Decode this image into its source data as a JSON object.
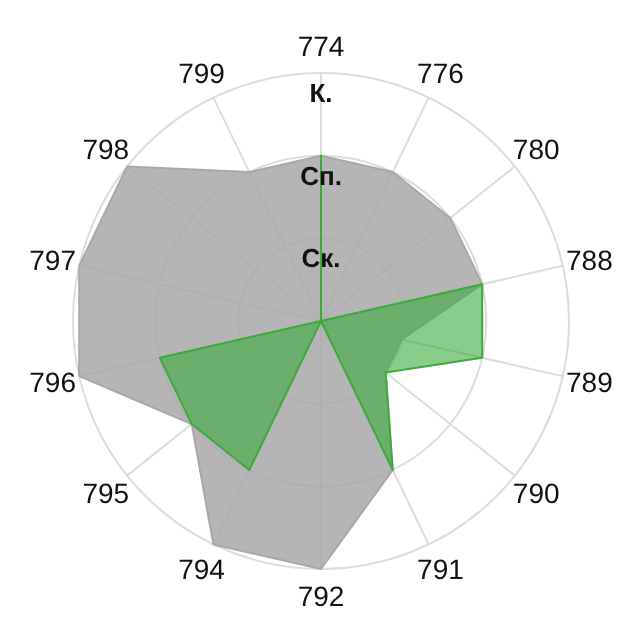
{
  "chart_data": {
    "type": "radar",
    "categories": [
      "774",
      "776",
      "780",
      "788",
      "789",
      "790",
      "791",
      "792",
      "794",
      "795",
      "796",
      "797",
      "798",
      "799"
    ],
    "ylim": [
      0,
      3
    ],
    "yticks": [
      {
        "value": 1,
        "label": "Ск."
      },
      {
        "value": 2,
        "label": "Сп."
      },
      {
        "value": 3,
        "label": "К."
      }
    ],
    "grid": true,
    "series": [
      {
        "color": "#a8a8a8",
        "values": [
          2,
          2,
          2,
          2,
          1,
          1,
          2,
          3,
          3,
          2,
          3,
          3,
          3,
          2
        ]
      },
      {
        "color": "#3caa3c",
        "values": [
          2,
          0,
          0,
          2,
          2,
          1,
          2,
          0,
          2,
          2,
          2,
          0,
          0,
          0
        ]
      }
    ]
  }
}
